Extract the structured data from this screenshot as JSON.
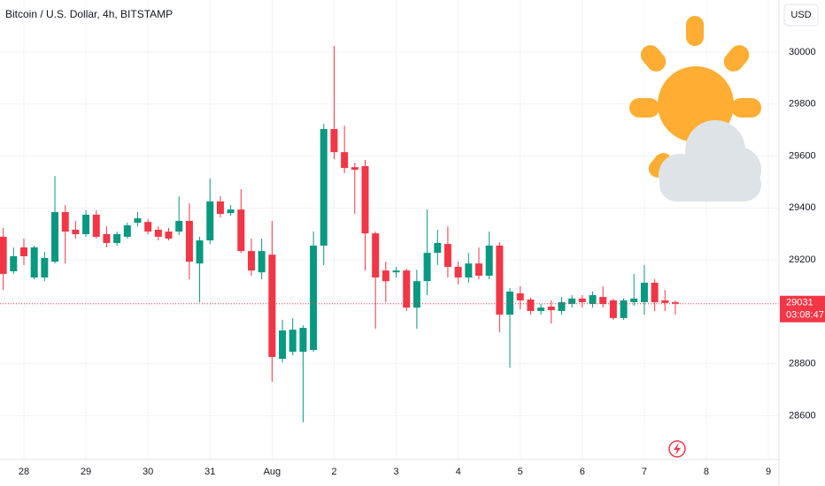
{
  "chart_data": {
    "type": "candlestick",
    "title": "Bitcoin / U.S. Dollar, 4h, BITSTAMP",
    "currency": "USD",
    "up_color": "#089981",
    "down_color": "#f23645",
    "x": [
      27.667,
      27.833,
      28,
      28.167,
      28.333,
      28.5,
      28.667,
      28.833,
      29,
      29.167,
      29.333,
      29.5,
      29.667,
      29.833,
      30,
      30.167,
      30.333,
      30.5,
      30.667,
      30.833,
      31,
      31.167,
      31.333,
      31.5,
      31.667,
      31.833,
      32,
      32.167,
      32.333,
      32.5,
      32.667,
      32.833,
      33,
      33.167,
      33.333,
      33.5,
      33.667,
      33.833,
      34,
      34.167,
      34.333,
      34.5,
      34.667,
      34.833,
      35,
      35.167,
      35.333,
      35.5,
      35.667,
      35.833,
      36,
      36.167,
      36.333,
      36.5,
      36.667,
      36.833,
      37,
      37.167,
      37.333,
      37.5,
      37.667,
      37.833,
      38,
      38.167,
      38.333,
      38.5
    ],
    "open": [
      29289,
      29156,
      29248,
      29132,
      29132,
      29193,
      29384,
      29316,
      29299,
      29374,
      29299,
      29265,
      29289,
      29343,
      29346,
      29316,
      29309,
      29309,
      29350,
      29186,
      29275,
      29425,
      29380,
      29394,
      29234,
      29152,
      29220,
      28819,
      28846,
      28846,
      28853,
      29255,
      29704,
      29615,
      29557,
      29561,
      29302,
      29159,
      29152,
      29159,
      29016,
      29118,
      29227,
      29261,
      29173,
      29132,
      29186,
      29139,
      29255,
      28989,
      29071,
      29047,
      29003,
      29020,
      29003,
      29030,
      29051,
      29030,
      29057,
      29044,
      28976,
      29037,
      29037,
      29112,
      29044,
      29037
    ],
    "high": [
      29323,
      29248,
      29282,
      29255,
      29231,
      29523,
      29411,
      29350,
      29391,
      29391,
      29329,
      29309,
      29343,
      29384,
      29357,
      29329,
      29323,
      29445,
      29418,
      29289,
      29513,
      29445,
      29411,
      29472,
      29282,
      29282,
      29350,
      28969,
      28975,
      28948,
      29309,
      29724,
      30024,
      29717,
      29574,
      29585,
      29309,
      29193,
      29173,
      29166,
      29162,
      29394,
      29316,
      29329,
      29193,
      29227,
      29248,
      29309,
      29268,
      29091,
      29098,
      29054,
      29030,
      29044,
      29057,
      29064,
      29064,
      29078,
      29098,
      29051,
      29051,
      29146,
      29180,
      29125,
      29084,
      29044
    ],
    "low": [
      29084,
      29146,
      29180,
      29125,
      29118,
      29186,
      29186,
      29282,
      29289,
      29282,
      29248,
      29255,
      29282,
      29329,
      29299,
      29275,
      29275,
      29296,
      29125,
      29037,
      29261,
      29363,
      29370,
      29227,
      29139,
      29125,
      28730,
      28805,
      28832,
      28574,
      28846,
      29180,
      29588,
      29534,
      29377,
      29159,
      28935,
      29037,
      29132,
      29003,
      28935,
      29064,
      29180,
      29132,
      29105,
      29112,
      29125,
      29125,
      28921,
      28785,
      29010,
      28989,
      28989,
      28955,
      28989,
      29016,
      29016,
      29016,
      29016,
      28969,
      28969,
      29023,
      28989,
      29003,
      29003,
      28989
    ],
    "close": [
      29146,
      29214,
      29214,
      29248,
      29207,
      29384,
      29309,
      29299,
      29374,
      29289,
      29265,
      29299,
      29333,
      29360,
      29309,
      29289,
      29282,
      29350,
      29193,
      29275,
      29425,
      29377,
      29394,
      29234,
      29159,
      29234,
      28826,
      28928,
      28931,
      28938,
      29255,
      29704,
      29615,
      29554,
      29547,
      29302,
      29132,
      29118,
      29159,
      29016,
      29118,
      29227,
      29265,
      29173,
      29132,
      29186,
      29139,
      29255,
      28989,
      29078,
      29044,
      29003,
      29016,
      29006,
      29037,
      29051,
      29037,
      29064,
      29030,
      28976,
      29044,
      29051,
      29112,
      29037,
      29034,
      29031
    ],
    "last_price": 29031,
    "countdown": "03:08:47",
    "xlim": [
      27.615,
      40.17
    ],
    "ylim": [
      28431,
      30201
    ],
    "xticks": [
      28,
      29,
      30,
      31,
      {
        "value": 32,
        "label": "Aug"
      },
      {
        "value": 33,
        "label": "2"
      },
      {
        "value": 34,
        "label": "3"
      },
      {
        "value": 35,
        "label": "4"
      },
      {
        "value": 36,
        "label": "5"
      },
      {
        "value": 37,
        "label": "6"
      },
      {
        "value": 38,
        "label": "7"
      },
      {
        "value": 39,
        "label": "8"
      },
      {
        "value": 40,
        "label": "9"
      }
    ],
    "yticks": [
      28600,
      28800,
      29200,
      29400,
      29600,
      29800,
      30000
    ],
    "grid": true
  }
}
